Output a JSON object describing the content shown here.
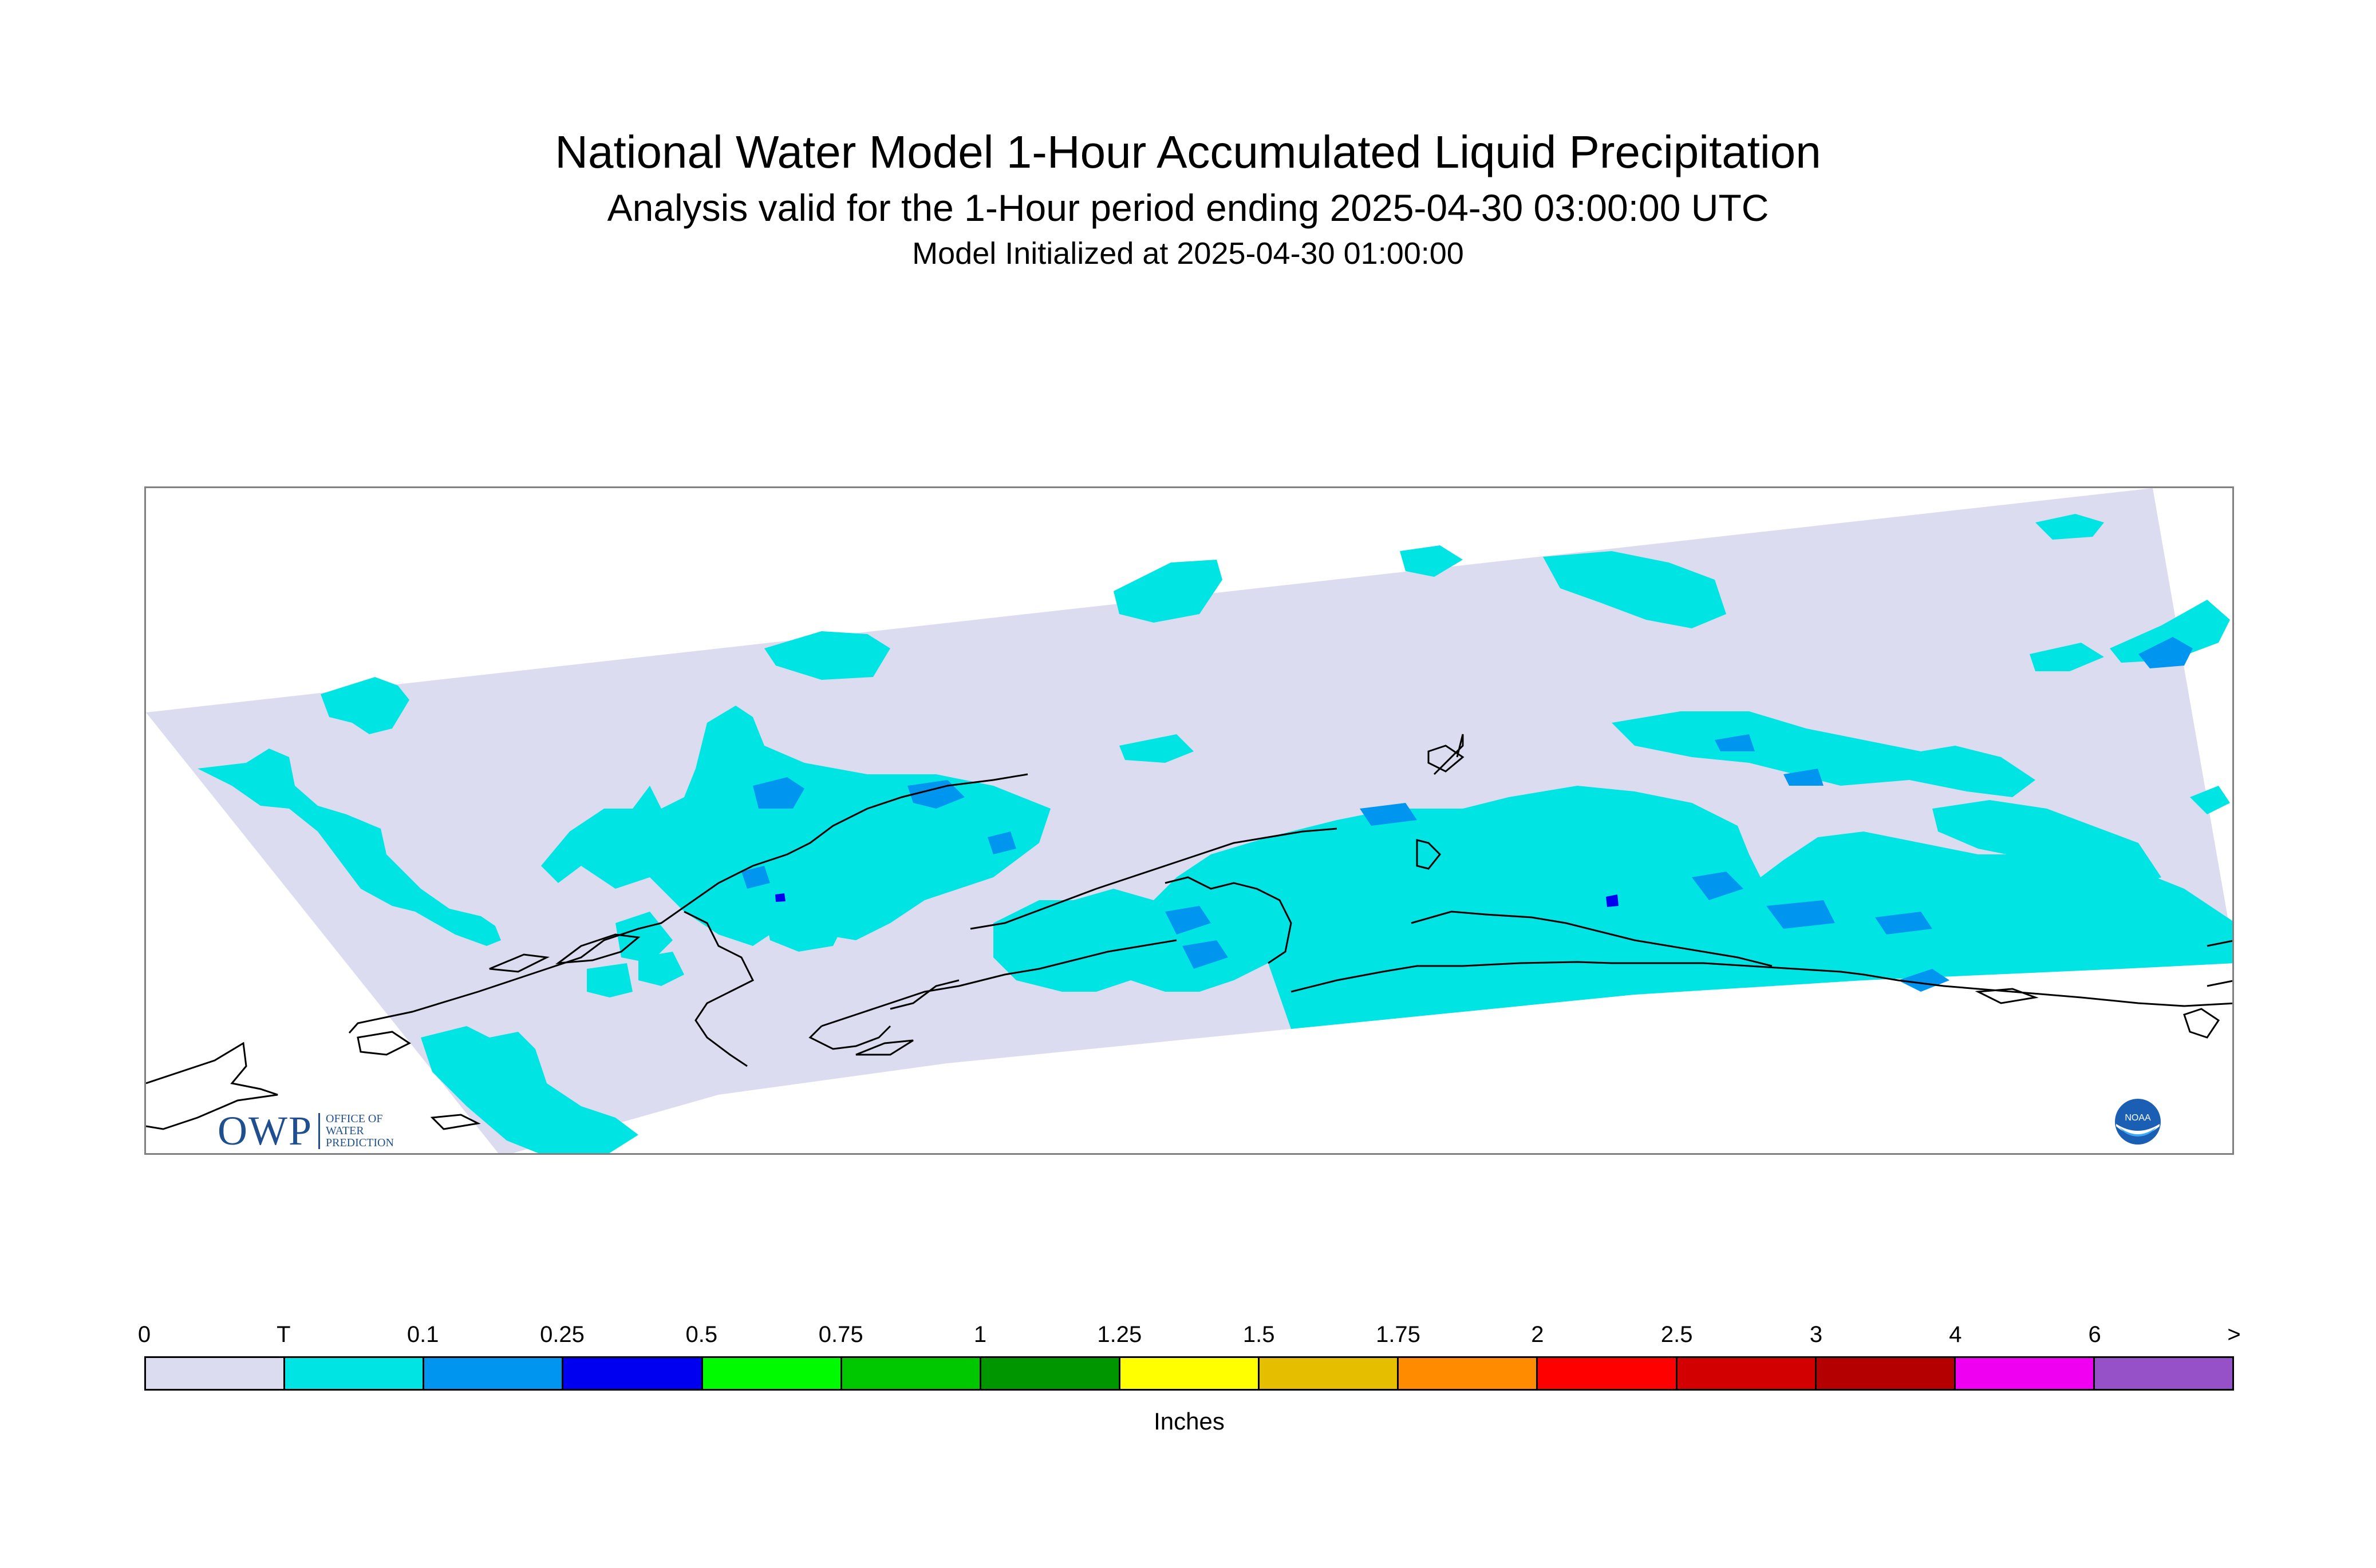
{
  "header": {
    "title": "National Water Model 1-Hour Accumulated Liquid Precipitation",
    "subtitle": "Analysis valid for the 1-Hour period ending 2025-04-30 03:00:00 UTC",
    "init_line": "Model Initialized at 2025-04-30 01:00:00"
  },
  "map": {
    "domain_color": "#dcdcf0",
    "trace_color": "#00e4e4",
    "light_blue_color": "#0096f0",
    "dark_blue_color": "#0000f0",
    "coastline_color": "#000000"
  },
  "legend": {
    "tick_labels": [
      "0",
      "T",
      "0.1",
      "0.25",
      "0.5",
      "0.75",
      "1",
      "1.25",
      "1.5",
      "1.75",
      "2",
      "2.5",
      "3",
      "4",
      "6",
      ">"
    ],
    "colors": [
      "#dcdcf0",
      "#00e4e4",
      "#0096f0",
      "#0000f0",
      "#00fa00",
      "#00c800",
      "#009600",
      "#ffff00",
      "#e6be00",
      "#ff8c00",
      "#ff0000",
      "#d20000",
      "#b40000",
      "#f000f0",
      "#9650c8"
    ],
    "units": "Inches"
  },
  "logos": {
    "owp_mark": "OWP",
    "owp_text": [
      "OFFICE OF",
      "WATER",
      "PREDICTION"
    ],
    "noaa_text": "NOAA"
  }
}
